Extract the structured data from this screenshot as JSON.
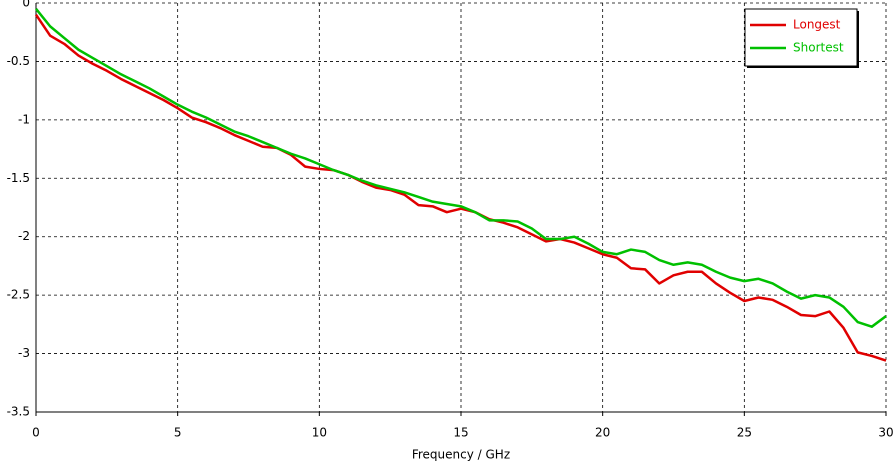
{
  "chart_data": {
    "type": "line",
    "xlabel": "Frequency / GHz",
    "x": [
      0,
      0.5,
      1,
      1.5,
      2,
      2.5,
      3,
      3.5,
      4,
      4.5,
      5,
      5.5,
      6,
      6.5,
      7,
      7.5,
      8,
      8.5,
      9,
      9.5,
      10,
      10.5,
      11,
      11.5,
      12,
      12.5,
      13,
      13.5,
      14,
      14.5,
      15,
      15.5,
      16,
      16.5,
      17,
      17.5,
      18,
      18.5,
      19,
      19.5,
      20,
      20.5,
      21,
      21.5,
      22,
      22.5,
      23,
      23.5,
      24,
      24.5,
      25,
      25.5,
      26,
      26.5,
      27,
      27.5,
      28,
      28.5,
      29,
      29.5,
      30
    ],
    "series": [
      {
        "name": "Longest",
        "color": "#e00000",
        "values": [
          -0.1,
          -0.28,
          -0.35,
          -0.45,
          -0.52,
          -0.58,
          -0.65,
          -0.71,
          -0.77,
          -0.83,
          -0.9,
          -0.98,
          -1.02,
          -1.07,
          -1.13,
          -1.18,
          -1.23,
          -1.24,
          -1.3,
          -1.4,
          -1.42,
          -1.43,
          -1.47,
          -1.53,
          -1.58,
          -1.6,
          -1.64,
          -1.73,
          -1.74,
          -1.79,
          -1.76,
          -1.79,
          -1.85,
          -1.88,
          -1.92,
          -1.98,
          -2.04,
          -2.02,
          -2.05,
          -2.1,
          -2.15,
          -2.18,
          -2.27,
          -2.28,
          -2.4,
          -2.33,
          -2.3,
          -2.3,
          -2.4,
          -2.48,
          -2.55,
          -2.52,
          -2.54,
          -2.6,
          -2.67,
          -2.68,
          -2.64,
          -2.78,
          -2.99,
          -3.02,
          -3.06
        ]
      },
      {
        "name": "Shortest",
        "color": "#00c000",
        "values": [
          -0.05,
          -0.2,
          -0.3,
          -0.4,
          -0.47,
          -0.54,
          -0.61,
          -0.67,
          -0.73,
          -0.8,
          -0.87,
          -0.93,
          -0.98,
          -1.04,
          -1.1,
          -1.14,
          -1.19,
          -1.24,
          -1.29,
          -1.33,
          -1.38,
          -1.43,
          -1.47,
          -1.52,
          -1.56,
          -1.59,
          -1.62,
          -1.66,
          -1.7,
          -1.72,
          -1.74,
          -1.79,
          -1.86,
          -1.86,
          -1.87,
          -1.93,
          -2.02,
          -2.02,
          -2.0,
          -2.06,
          -2.13,
          -2.15,
          -2.11,
          -2.13,
          -2.2,
          -2.24,
          -2.22,
          -2.24,
          -2.3,
          -2.35,
          -2.38,
          -2.36,
          -2.4,
          -2.47,
          -2.53,
          -2.5,
          -2.52,
          -2.6,
          -2.73,
          -2.77,
          -2.68
        ]
      }
    ],
    "xlim": [
      0,
      30
    ],
    "xticks": [
      0,
      5,
      10,
      15,
      20,
      25,
      30
    ],
    "ylim": [
      -3.5,
      0
    ],
    "yticks": [
      0,
      -0.5,
      -1,
      -1.5,
      -2,
      -2.5,
      -3,
      -3.5
    ],
    "grid": true,
    "legend": "upper right"
  }
}
